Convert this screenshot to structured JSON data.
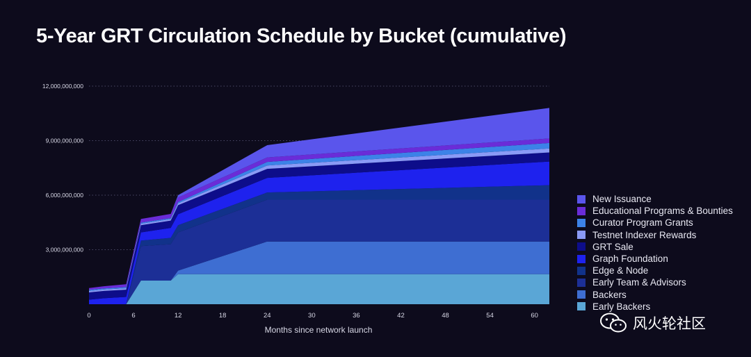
{
  "chart_data": {
    "type": "area",
    "stacked": true,
    "title": "5-Year GRT Circulation Schedule by Bucket (cumulative)",
    "xlabel": "Months since network launch",
    "ylabel": "",
    "xlim": [
      0,
      62
    ],
    "ylim": [
      0,
      12000000000
    ],
    "xticks": [
      0,
      6,
      12,
      18,
      24,
      30,
      36,
      42,
      48,
      54,
      60
    ],
    "xtick_labels": [
      "0",
      "6",
      "12",
      "18",
      "24",
      "30",
      "36",
      "42",
      "48",
      "54",
      "60"
    ],
    "yticks": [
      3000000000,
      6000000000,
      9000000000,
      12000000000
    ],
    "ytick_labels": [
      "3,000,000,000",
      "6,000,000,000",
      "9,000,000,000",
      "12,000,000,000"
    ],
    "grid": "horizontal-dotted",
    "legend_position": "right",
    "x": [
      0,
      2,
      5,
      7,
      11,
      12,
      24,
      62
    ],
    "series": [
      {
        "name": "Early Backers",
        "color": "#5aa6d6",
        "values": [
          0,
          0,
          0,
          1300000000,
          1300000000,
          1650000000,
          1650000000,
          1650000000
        ]
      },
      {
        "name": "Backers",
        "color": "#3e6ed2",
        "values": [
          0,
          0,
          0,
          0,
          0,
          200000000,
          1800000000,
          1800000000
        ]
      },
      {
        "name": "Early Team & Advisors",
        "color": "#1c2f96",
        "values": [
          0,
          0,
          0,
          1900000000,
          2000000000,
          2100000000,
          2300000000,
          2300000000
        ]
      },
      {
        "name": "Edge & Node",
        "color": "#11328a",
        "values": [
          0,
          0,
          0,
          300000000,
          350000000,
          400000000,
          400000000,
          800000000
        ]
      },
      {
        "name": "Graph Foundation",
        "color": "#1e22ee",
        "values": [
          250000000,
          330000000,
          400000000,
          450000000,
          550000000,
          600000000,
          800000000,
          1300000000
        ]
      },
      {
        "name": "GRT Sale",
        "color": "#0d0d8a",
        "values": [
          400000000,
          400000000,
          400000000,
          400000000,
          400000000,
          500000000,
          500000000,
          500000000
        ]
      },
      {
        "name": "Testnet Indexer Rewards",
        "color": "#8a9af6",
        "values": [
          80000000,
          80000000,
          80000000,
          80000000,
          80000000,
          100000000,
          180000000,
          220000000
        ]
      },
      {
        "name": "Curator Program Grants",
        "color": "#3c82e8",
        "values": [
          60000000,
          60000000,
          60000000,
          60000000,
          60000000,
          70000000,
          200000000,
          300000000
        ]
      },
      {
        "name": "Educational Programs & Bounties",
        "color": "#6a2cd8",
        "values": [
          100000000,
          120000000,
          160000000,
          200000000,
          230000000,
          250000000,
          250000000,
          250000000
        ]
      },
      {
        "name": "New Issuance",
        "color": "#5a55ec",
        "values": [
          0,
          0,
          0,
          0,
          0,
          130000000,
          670000000,
          1680000000
        ]
      }
    ]
  },
  "watermark": {
    "text": "风火轮社区",
    "icon": "wechat-icon"
  }
}
